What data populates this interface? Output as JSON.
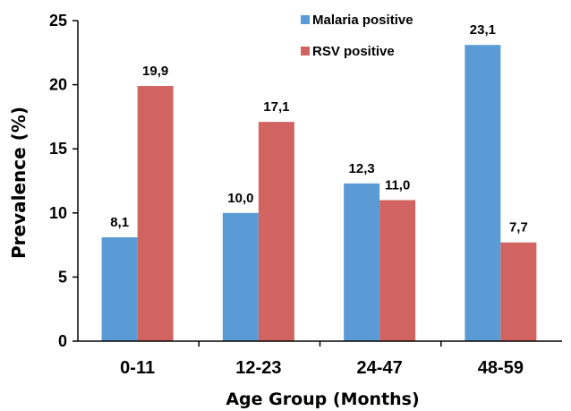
{
  "chart_data": {
    "type": "bar",
    "categories": [
      "0-11",
      "12-23",
      "24-47",
      "48-59"
    ],
    "series": [
      {
        "name": "Malaria positive",
        "values": [
          8.1,
          10.0,
          12.3,
          23.1
        ],
        "labels": [
          "8,1",
          "10,0",
          "12,3",
          "23,1"
        ],
        "color": "#5B9BD5"
      },
      {
        "name": "RSV positive",
        "values": [
          19.9,
          17.1,
          11.0,
          7.7
        ],
        "labels": [
          "19,9",
          "17,1",
          "11,0",
          "7,7"
        ],
        "color": "#D16461"
      }
    ],
    "xlabel": "Age Group (Months)",
    "ylabel": "Prevalence (%)",
    "ylim": [
      0,
      25
    ],
    "yticks": [
      "0",
      "5",
      "10",
      "15",
      "20",
      "25"
    ],
    "grid": false,
    "legend_position": "top-right"
  }
}
